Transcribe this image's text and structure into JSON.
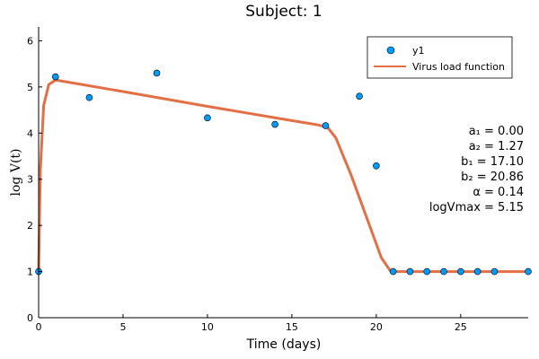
{
  "chart_data": {
    "type": "scatter",
    "title": "Subject: 1",
    "xlabel": "Time (days)",
    "ylabel": "log V(t)",
    "xlim": [
      0,
      29
    ],
    "ylim": [
      0,
      6.3
    ],
    "x_ticks": [
      0,
      5,
      10,
      15,
      20,
      25
    ],
    "y_ticks": [
      0,
      1,
      2,
      3,
      4,
      5,
      6
    ],
    "grid": false,
    "legend_position": "top-right",
    "series": [
      {
        "name": "y1",
        "kind": "scatter",
        "color": "#009af9",
        "x": [
          0,
          1,
          3,
          7,
          10,
          14,
          17,
          19,
          20,
          21,
          22,
          23,
          24,
          25,
          26,
          27,
          29
        ],
        "y": [
          1.0,
          5.22,
          4.77,
          5.3,
          4.33,
          4.19,
          4.16,
          4.8,
          3.29,
          1.0,
          1.0,
          1.0,
          1.0,
          1.0,
          1.0,
          1.0,
          1.0
        ]
      },
      {
        "name": "Virus load function",
        "kind": "line",
        "color": "#e26f46",
        "x": [
          0,
          0.1,
          0.3,
          0.6,
          1.0,
          5,
          10,
          15,
          16.5,
          17.1,
          17.6,
          18.5,
          19.5,
          20.3,
          20.86,
          21,
          29
        ],
        "y": [
          1.0,
          3.2,
          4.6,
          5.05,
          5.15,
          4.9,
          4.58,
          4.27,
          4.18,
          4.13,
          3.9,
          3.1,
          2.1,
          1.3,
          1.0,
          1.0,
          1.0
        ]
      }
    ],
    "annotations": [
      "a₁ = 0.00",
      "a₂ = 1.27",
      "b₁ = 17.10",
      "b₂ = 20.86",
      "α = 0.14",
      "logVmax = 5.15"
    ]
  }
}
